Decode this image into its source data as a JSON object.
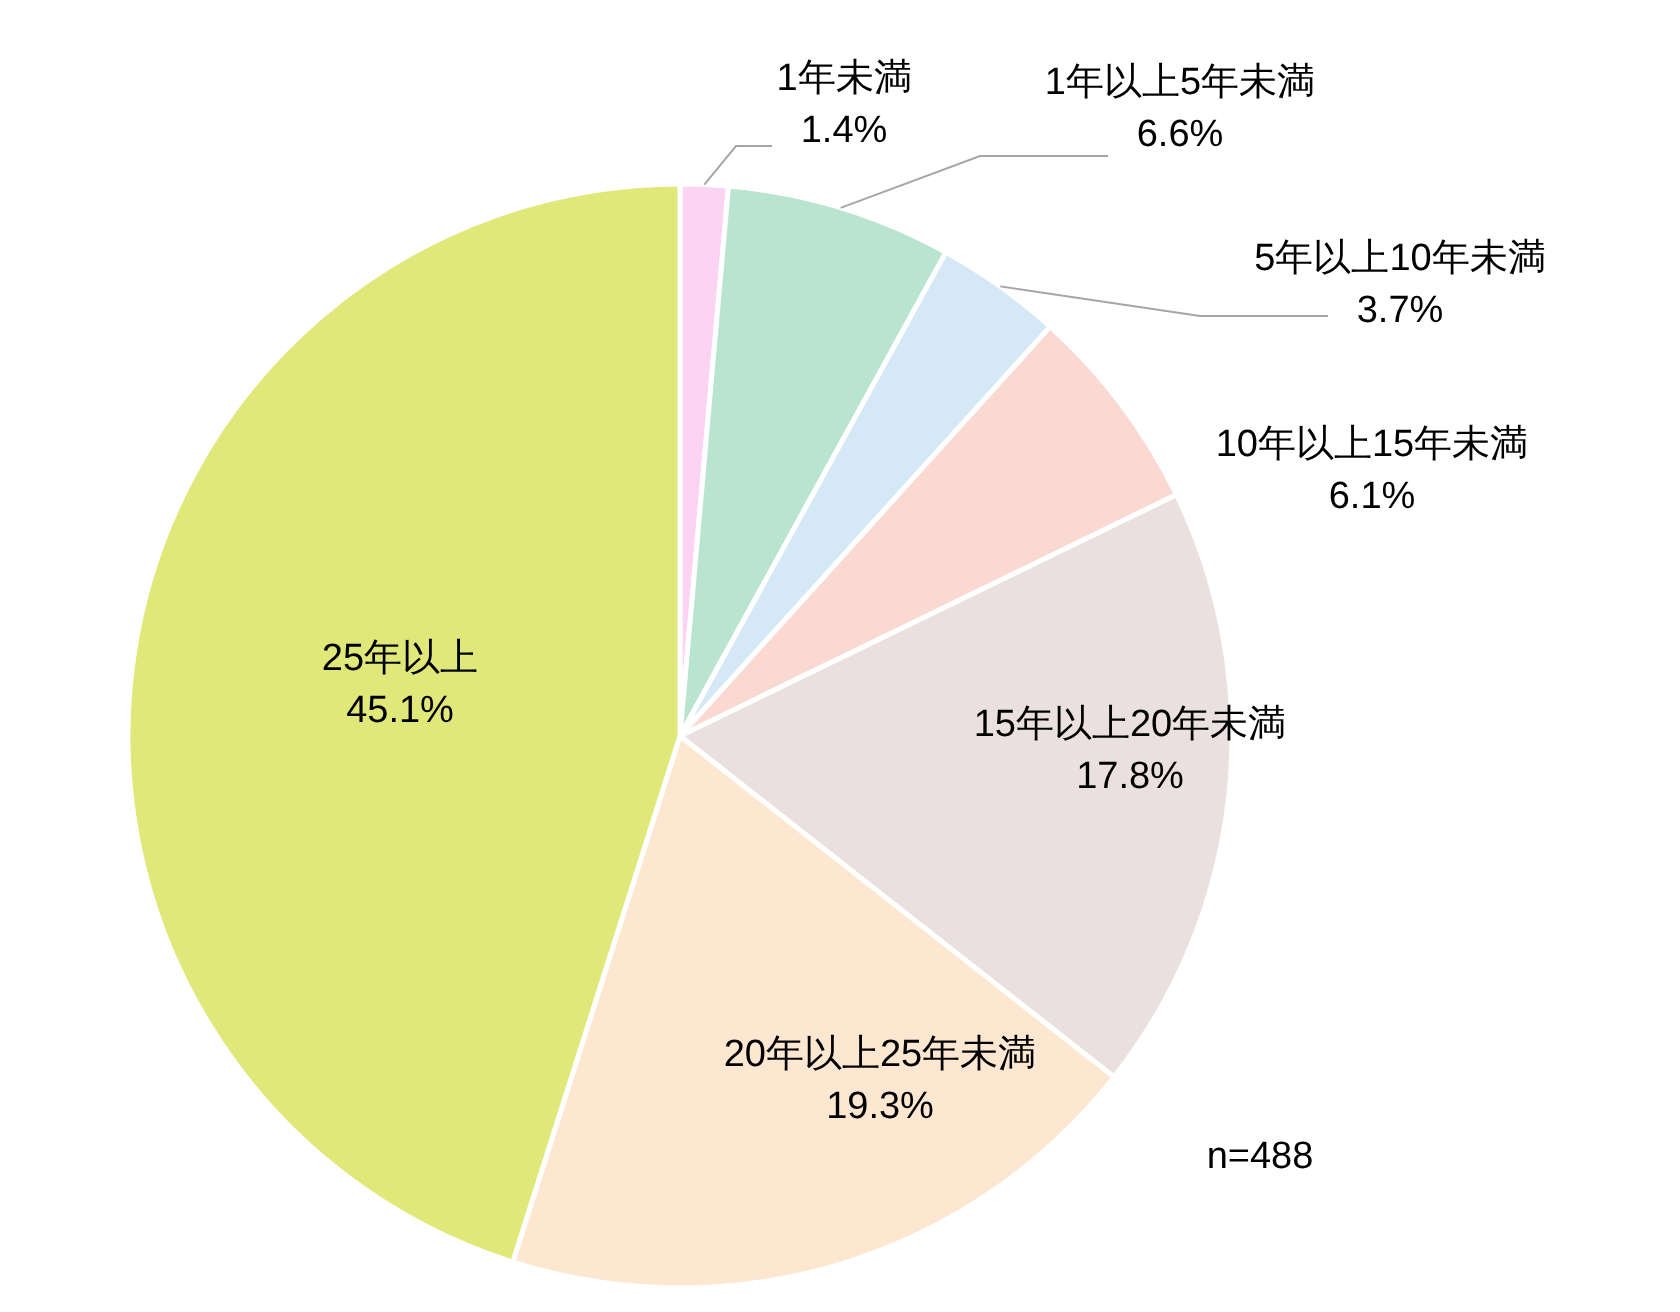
{
  "chart_data": {
    "type": "pie",
    "categories": [
      "1年未満",
      "1年以上5年未満",
      "5年以上10年未満",
      "10年以上15年未満",
      "15年以上20年未満",
      "20年以上25年未満",
      "25年以上"
    ],
    "values": [
      1.4,
      6.6,
      3.7,
      6.1,
      17.8,
      19.3,
      45.1
    ],
    "colors": [
      "#fcd3f3",
      "#b9e4cf",
      "#d4e8f6",
      "#fad9d3",
      "#ebe0e0",
      "#fde7d1",
      "#e0e87a"
    ],
    "value_labels": [
      "1.4%",
      "6.6%",
      "3.7%",
      "6.1%",
      "17.8%",
      "19.3%",
      "45.1%"
    ],
    "annotations": [
      "n=488"
    ]
  }
}
